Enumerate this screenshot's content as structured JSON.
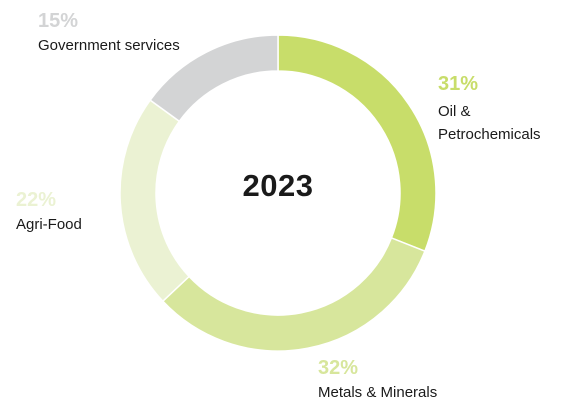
{
  "chart_data": {
    "type": "pie",
    "title": "2023",
    "slices": [
      {
        "label": "Oil & Petrochemicals",
        "value": 31,
        "display": "31%",
        "color": "#c8dd6a"
      },
      {
        "label": "Metals & Minerals",
        "value": 32,
        "display": "32%",
        "color": "#d7e69c"
      },
      {
        "label": "Agri-Food",
        "value": 22,
        "display": "22%",
        "color": "#ebf2d3"
      },
      {
        "label": "Government services",
        "value": 15,
        "display": "15%",
        "color": "#d3d4d5"
      }
    ],
    "legend": false
  }
}
